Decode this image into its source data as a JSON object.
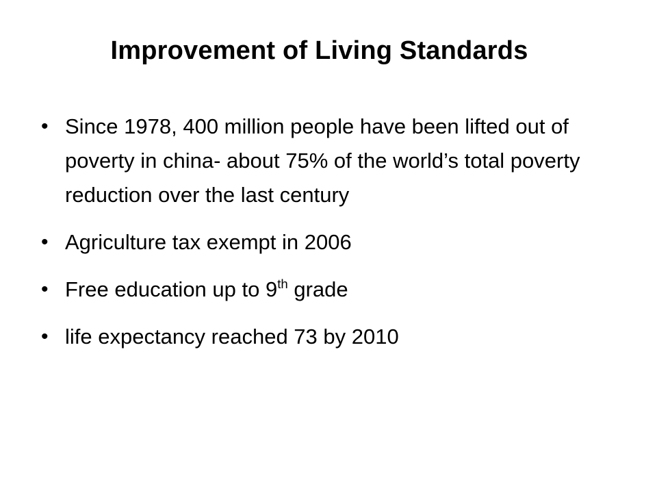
{
  "slide": {
    "title": "Improvement of Living Standards",
    "bullets": [
      {
        "text": "Since 1978, 400 million people have been lifted out of poverty in china- about 75% of the world’s total poverty reduction over the last century"
      },
      {
        "text": "Agriculture tax exempt in 2006"
      },
      {
        "text_before": "Free education up to 9",
        "superscript": "th",
        "text_after": " grade"
      },
      {
        "text": "life expectancy reached 73 by 2010"
      }
    ],
    "bullet_symbol": "•"
  }
}
